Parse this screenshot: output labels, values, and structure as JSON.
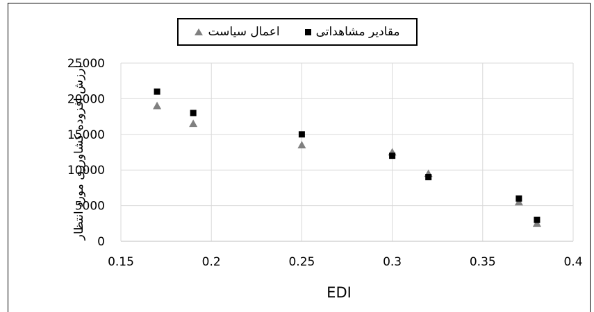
{
  "chart_data": {
    "type": "scatter",
    "xlabel": "EDI",
    "ylabel": "ارزش افزوده کشاورزی مورد انتظار",
    "xlim": [
      0.15,
      0.4
    ],
    "ylim": [
      0,
      25000
    ],
    "xticks": [
      "0.15",
      "0.2",
      "0.25",
      "0.3",
      "0.35",
      "0.4"
    ],
    "yticks": [
      "0",
      "5000",
      "10000",
      "15000",
      "20000",
      "25000"
    ],
    "grid": "on",
    "legend_position": "top-center",
    "series": [
      {
        "name": "مقادیر مشاهداتی",
        "marker": "square",
        "color": "#000000",
        "points": [
          {
            "x": 0.17,
            "y": 21000
          },
          {
            "x": 0.19,
            "y": 18000
          },
          {
            "x": 0.25,
            "y": 15000
          },
          {
            "x": 0.3,
            "y": 12000
          },
          {
            "x": 0.32,
            "y": 9000
          },
          {
            "x": 0.37,
            "y": 6000
          },
          {
            "x": 0.38,
            "y": 3000
          }
        ]
      },
      {
        "name": "اعمال سیاست",
        "marker": "triangle",
        "color": "#808080",
        "points": [
          {
            "x": 0.17,
            "y": 19000
          },
          {
            "x": 0.19,
            "y": 16500
          },
          {
            "x": 0.25,
            "y": 13500
          },
          {
            "x": 0.3,
            "y": 12500
          },
          {
            "x": 0.32,
            "y": 9500
          },
          {
            "x": 0.37,
            "y": 5500
          },
          {
            "x": 0.38,
            "y": 2500
          }
        ]
      }
    ]
  }
}
